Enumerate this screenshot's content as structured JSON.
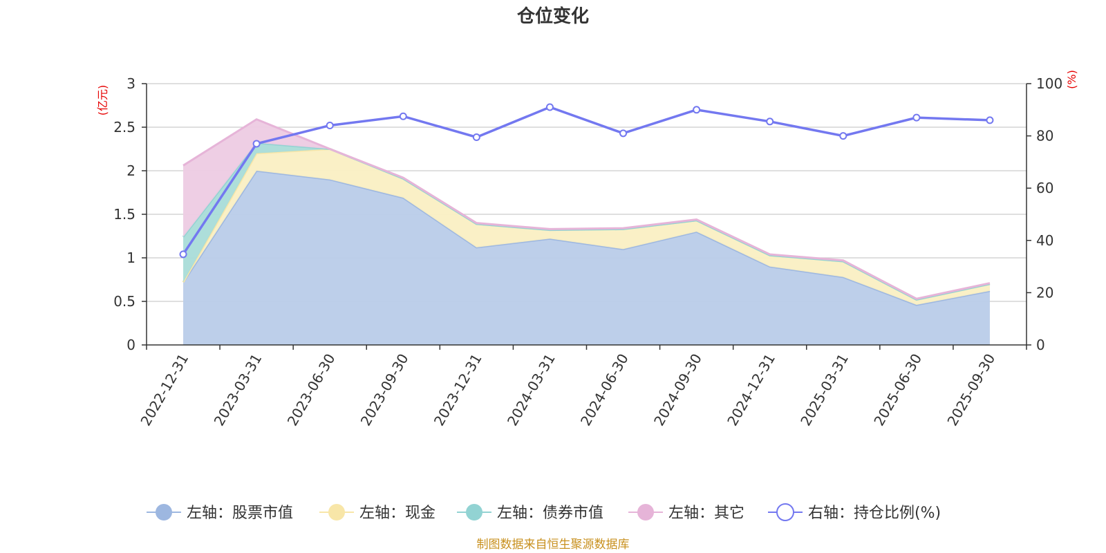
{
  "chart_data": {
    "type": "area",
    "title": "仓位变化",
    "categories": [
      "2022-12-31",
      "2023-03-31",
      "2023-06-30",
      "2023-09-30",
      "2023-12-31",
      "2024-03-31",
      "2024-06-30",
      "2024-09-30",
      "2024-12-31",
      "2025-03-31",
      "2025-06-30",
      "2025-09-30"
    ],
    "left_axis": {
      "unit": "(亿元)",
      "ylim": [
        0,
        3
      ],
      "ticks": [
        "0",
        "0.5",
        "1",
        "1.5",
        "2",
        "2.5",
        "3"
      ]
    },
    "right_axis": {
      "unit": "(%)",
      "ylim": [
        0,
        100
      ],
      "ticks": [
        "0",
        "20",
        "40",
        "60",
        "80",
        "100"
      ]
    },
    "stacked_series": [
      {
        "name": "左轴：股票市值",
        "color": "#9db7e0",
        "fill": "#b9cce9",
        "values": [
          0.72,
          2.0,
          1.9,
          1.69,
          1.12,
          1.22,
          1.1,
          1.3,
          0.9,
          0.78,
          0.46,
          0.62
        ]
      },
      {
        "name": "左轴：现金",
        "color": "#f8e6a8",
        "fill": "#faefc3",
        "values": [
          0.0,
          0.2,
          0.35,
          0.22,
          0.27,
          0.1,
          0.23,
          0.13,
          0.13,
          0.18,
          0.06,
          0.08
        ]
      },
      {
        "name": "左轴：债券市值",
        "color": "#92d3d3",
        "fill": "#a9dcd8",
        "values": [
          0.52,
          0.12,
          0.0,
          0.0,
          0.0,
          0.0,
          0.0,
          0.0,
          0.0,
          0.0,
          0.0,
          0.0
        ]
      },
      {
        "name": "左轴：其它",
        "color": "#e6b4d8",
        "fill": "#edcbe3",
        "values": [
          0.82,
          0.27,
          0.0,
          0.01,
          0.01,
          0.01,
          0.01,
          0.01,
          0.01,
          0.01,
          0.01,
          0.01
        ]
      }
    ],
    "line_series": {
      "name": "右轴：持仓比例(%)",
      "color": "#7378f0",
      "values": [
        34.7,
        77,
        84,
        87.5,
        79.5,
        91,
        81,
        90,
        85.5,
        80,
        87,
        86
      ]
    }
  },
  "source_note": "制图数据来自恒生聚源数据库"
}
